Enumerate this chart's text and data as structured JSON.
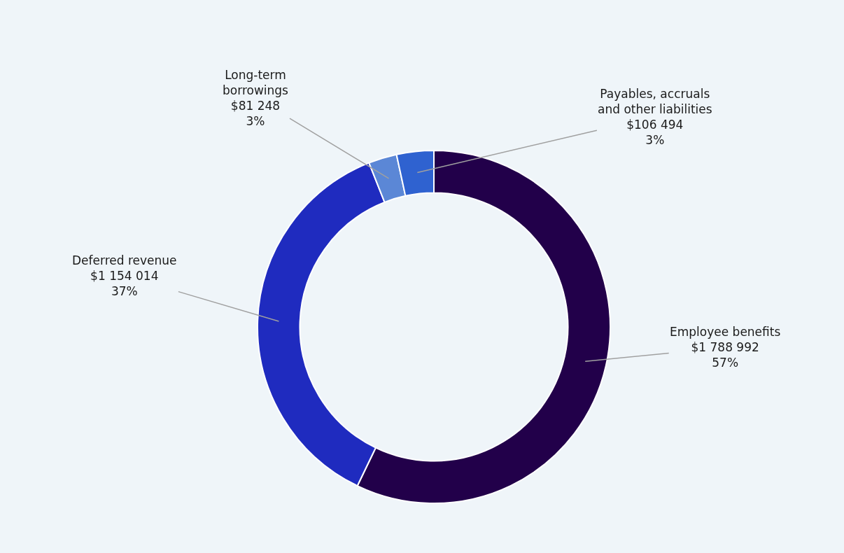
{
  "chart_data": {
    "type": "donut",
    "categories": [
      "Employee benefits",
      "Deferred revenue",
      "Long-term\nborrowings",
      "Payables, accruals\nand other liabilities"
    ],
    "values": [
      1788992,
      1154014,
      81248,
      106494
    ],
    "value_labels": [
      "$1 788 992\n57%",
      "$1 154 014\n37%",
      "$81 248\n3%",
      "$106 494\n3%"
    ],
    "colors": [
      "#22004a",
      "#1f2bbf",
      "#5b87d6",
      "#2f62d0"
    ],
    "legend": false
  }
}
